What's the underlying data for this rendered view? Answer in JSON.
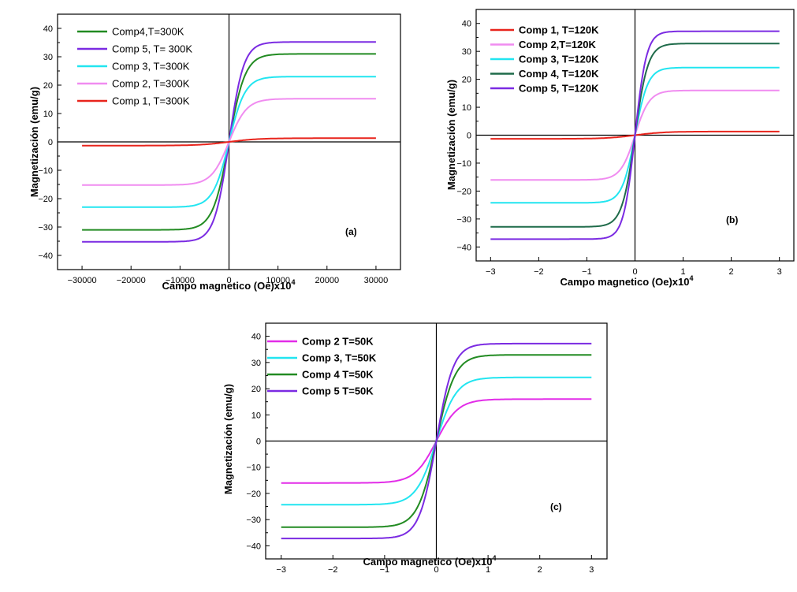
{
  "chart_data": [
    {
      "type": "line",
      "panel_label": "(a)",
      "xlabel": "Campo  magnetico (Oe)x10",
      "xlabel_sup": "4",
      "ylabel": "Magnetización (emu/g)",
      "xlim": [
        -35000,
        35000
      ],
      "ylim": [
        -45,
        45
      ],
      "xticks": [
        -30000,
        -20000,
        -10000,
        0,
        10000,
        20000,
        30000
      ],
      "yticks": [
        -40,
        -30,
        -20,
        -10,
        0,
        10,
        20,
        30,
        40
      ],
      "legend_position": "top-left",
      "legend_bold": false,
      "x_range": [
        -30000,
        30000
      ],
      "series": [
        {
          "name": "Comp4,T=300K",
          "color": "#228B22",
          "ms": 31,
          "hs": 0.11
        },
        {
          "name": "Comp 5, T= 300K",
          "color": "#7B2BE2",
          "ms": 35.2,
          "hs": 0.1
        },
        {
          "name": "Comp 3, T=300K",
          "color": "#22E5F0",
          "ms": 23,
          "hs": 0.11
        },
        {
          "name": "Comp 2, T=300K",
          "color": "#F08CF0",
          "ms": 15.2,
          "hs": 0.12
        },
        {
          "name": "Comp 1, T=300K",
          "color": "#E8241C",
          "ms": 1.3,
          "hs": 0.2
        }
      ]
    },
    {
      "type": "line",
      "panel_label": "(b)",
      "xlabel": "Campo magnetico (Oe)x10",
      "xlabel_sup": "4",
      "ylabel": "Magnetización (emu/g)",
      "xlim": [
        -3.3,
        3.3
      ],
      "ylim": [
        -45,
        45
      ],
      "xticks": [
        -3,
        -2,
        -1,
        0,
        1,
        2,
        3
      ],
      "yticks": [
        -40,
        -30,
        -20,
        -10,
        0,
        10,
        20,
        30,
        40
      ],
      "legend_position": "top-left",
      "legend_bold": true,
      "x_range": [
        -3,
        3
      ],
      "series": [
        {
          "name": "Comp 1, T=120K",
          "color": "#E8241C",
          "ms": 1.3,
          "hs": 0.2
        },
        {
          "name": "Comp 2,T=120K",
          "color": "#F08CF0",
          "ms": 16,
          "hs": 0.1
        },
        {
          "name": "Comp 3, T=120K",
          "color": "#22E5F0",
          "ms": 24.2,
          "hs": 0.09
        },
        {
          "name": "Comp 4, T=120K",
          "color": "#1F6B4A",
          "ms": 32.8,
          "hs": 0.09
        },
        {
          "name": "Comp 5, T=120K",
          "color": "#7B2BE2",
          "ms": 37.2,
          "hs": 0.08
        }
      ]
    },
    {
      "type": "line",
      "panel_label": "(c)",
      "xlabel": "Campo magnetico (Oe)x10",
      "xlabel_sup": "4",
      "ylabel": "Magnetización (emu/g)",
      "xlim": [
        -3.3,
        3.3
      ],
      "ylim": [
        -45,
        45
      ],
      "xticks": [
        -3,
        -2,
        -1,
        0,
        1,
        2,
        3
      ],
      "yticks": [
        -40,
        -30,
        -20,
        -10,
        0,
        10,
        20,
        30,
        40
      ],
      "legend_position": "top-left",
      "legend_bold": true,
      "x_range": [
        -3,
        3
      ],
      "series": [
        {
          "name": "Comp 2 T=50K",
          "color": "#E22CE8",
          "ms": 16,
          "hs": 0.14
        },
        {
          "name": "Comp 3, T=50K",
          "color": "#22E5F0",
          "ms": 24.3,
          "hs": 0.13
        },
        {
          "name": "Comp 4 T=50K",
          "color": "#228B22",
          "ms": 32.9,
          "hs": 0.12
        },
        {
          "name": "Comp 5 T=50K",
          "color": "#7B2BE2",
          "ms": 37.2,
          "hs": 0.11
        }
      ]
    }
  ]
}
